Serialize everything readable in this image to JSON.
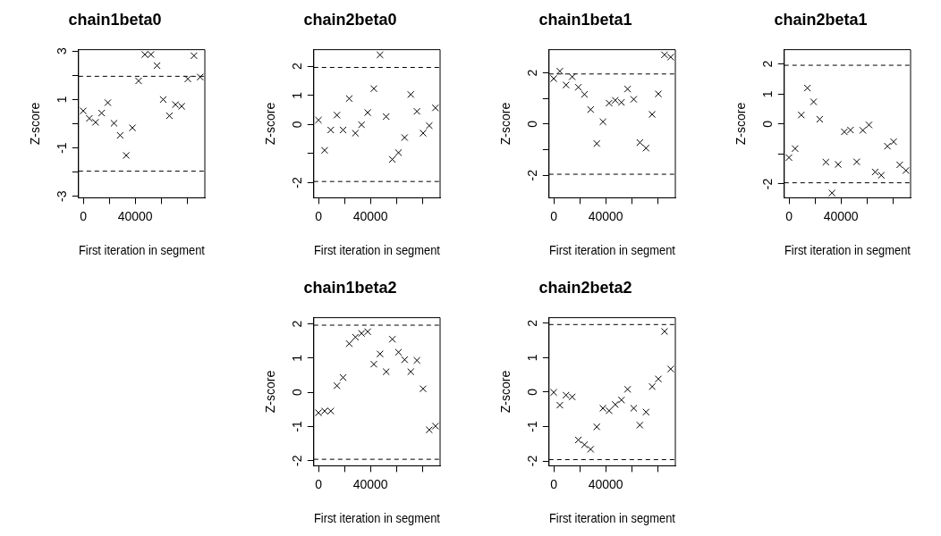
{
  "chart_data": [
    {
      "type": "scatter",
      "title": "chain1beta0",
      "xlabel": "First iteration in segment",
      "ylabel": "Z-score",
      "marker": "cross",
      "color": "#000000",
      "x": [
        0,
        4737,
        9474,
        14211,
        18947,
        23684,
        28421,
        33158,
        37895,
        42632,
        47368,
        52105,
        56842,
        61579,
        66316,
        71053,
        75789,
        80526,
        85263,
        90000
      ],
      "values": [
        0.53,
        0.22,
        0.06,
        0.44,
        0.87,
        0.02,
        -0.48,
        -1.31,
        -0.17,
        1.77,
        2.86,
        2.86,
        2.4,
        1.0,
        0.33,
        0.79,
        0.72,
        1.85,
        2.81,
        1.93
      ],
      "xlim": [
        -3600,
        93600
      ],
      "xticks": [
        {
          "value": 0,
          "label": "0"
        },
        {
          "value": 20000,
          "label": null
        },
        {
          "value": 40000,
          "label": "40000"
        },
        {
          "value": 60000,
          "label": null
        },
        {
          "value": 80000,
          "label": null
        }
      ],
      "ylim": [
        -3.06,
        3.06
      ],
      "yticks": [
        {
          "value": -3,
          "label": "-3"
        },
        {
          "value": -2,
          "label": null
        },
        {
          "value": -1,
          "label": "-1"
        },
        {
          "value": 0,
          "label": null
        },
        {
          "value": 1,
          "label": "1"
        },
        {
          "value": 2,
          "label": null
        },
        {
          "value": 3,
          "label": "3"
        }
      ],
      "ref_lines": [
        {
          "axis": "y",
          "value": 1.96,
          "line_style": "dashed"
        },
        {
          "axis": "y",
          "value": -1.96,
          "line_style": "dashed"
        }
      ]
    },
    {
      "type": "scatter",
      "title": "chain2beta0",
      "xlabel": "First iteration in segment",
      "ylabel": "Z-score",
      "marker": "cross",
      "color": "#000000",
      "x": [
        0,
        4737,
        9474,
        14211,
        18947,
        23684,
        28421,
        33158,
        37895,
        42632,
        47368,
        52105,
        56842,
        61579,
        66316,
        71053,
        75789,
        80526,
        85263,
        90000
      ],
      "values": [
        0.15,
        -0.89,
        -0.19,
        0.32,
        -0.19,
        0.89,
        -0.3,
        -0.01,
        0.41,
        1.23,
        2.39,
        0.27,
        -1.2,
        -0.97,
        -0.45,
        1.03,
        0.45,
        -0.3,
        -0.04,
        0.57
      ],
      "xlim": [
        -3600,
        93600
      ],
      "xticks": [
        {
          "value": 0,
          "label": "0"
        },
        {
          "value": 20000,
          "label": null
        },
        {
          "value": 40000,
          "label": "40000"
        },
        {
          "value": 60000,
          "label": null
        },
        {
          "value": 80000,
          "label": null
        }
      ],
      "ylim": [
        -2.52,
        2.57
      ],
      "yticks": [
        {
          "value": -2,
          "label": "-2"
        },
        {
          "value": -1,
          "label": null
        },
        {
          "value": 0,
          "label": "0"
        },
        {
          "value": 1,
          "label": "1"
        },
        {
          "value": 2,
          "label": "2"
        }
      ],
      "ref_lines": [
        {
          "axis": "y",
          "value": 1.96,
          "line_style": "dashed"
        },
        {
          "axis": "y",
          "value": -1.96,
          "line_style": "dashed"
        }
      ]
    },
    {
      "type": "scatter",
      "title": "chain1beta1",
      "xlabel": "First iteration in segment",
      "ylabel": "Z-score",
      "marker": "cross",
      "color": "#000000",
      "x": [
        0,
        4737,
        9474,
        14211,
        18947,
        23684,
        28421,
        33158,
        37895,
        42632,
        47368,
        52105,
        56842,
        61579,
        66316,
        71053,
        75789,
        80526,
        85263,
        90000
      ],
      "values": [
        1.78,
        2.07,
        1.53,
        1.85,
        1.44,
        1.16,
        0.57,
        -0.76,
        0.09,
        0.82,
        0.93,
        0.85,
        1.37,
        0.97,
        -0.72,
        -0.94,
        0.38,
        1.18,
        2.71,
        2.62
      ],
      "xlim": [
        -3600,
        93600
      ],
      "xticks": [
        {
          "value": 0,
          "label": "0"
        },
        {
          "value": 20000,
          "label": null
        },
        {
          "value": 40000,
          "label": "40000"
        },
        {
          "value": 60000,
          "label": null
        },
        {
          "value": 80000,
          "label": null
        }
      ],
      "ylim": [
        -2.88,
        2.91
      ],
      "yticks": [
        {
          "value": -2,
          "label": "-2"
        },
        {
          "value": -1,
          "label": null
        },
        {
          "value": 0,
          "label": "0"
        },
        {
          "value": 1,
          "label": null
        },
        {
          "value": 2,
          "label": "2"
        }
      ],
      "ref_lines": [
        {
          "axis": "y",
          "value": 1.96,
          "line_style": "dashed"
        },
        {
          "axis": "y",
          "value": -1.96,
          "line_style": "dashed"
        }
      ]
    },
    {
      "type": "scatter",
      "title": "chain2beta1",
      "xlabel": "First iteration in segment",
      "ylabel": "Z-score",
      "marker": "cross",
      "color": "#000000",
      "x": [
        0,
        4737,
        9474,
        14211,
        18947,
        23684,
        28421,
        33158,
        37895,
        42632,
        47368,
        52105,
        56842,
        61579,
        66316,
        71053,
        75789,
        80526,
        85263,
        90000
      ],
      "values": [
        -1.12,
        -0.82,
        0.3,
        1.2,
        0.74,
        0.16,
        -1.27,
        -2.3,
        -1.35,
        -0.26,
        -0.2,
        -1.26,
        -0.21,
        -0.03,
        -1.6,
        -1.71,
        -0.74,
        -0.59,
        -1.36,
        -1.55
      ],
      "xlim": [
        -3600,
        93600
      ],
      "xticks": [
        {
          "value": 0,
          "label": "0"
        },
        {
          "value": 20000,
          "label": null
        },
        {
          "value": 40000,
          "label": "40000"
        },
        {
          "value": 60000,
          "label": null
        },
        {
          "value": 80000,
          "label": null
        }
      ],
      "ylim": [
        -2.46,
        2.48
      ],
      "yticks": [
        {
          "value": -2,
          "label": "-2"
        },
        {
          "value": -1,
          "label": null
        },
        {
          "value": 0,
          "label": "0"
        },
        {
          "value": 1,
          "label": "1"
        },
        {
          "value": 2,
          "label": "2"
        }
      ],
      "ref_lines": [
        {
          "axis": "y",
          "value": 1.96,
          "line_style": "dashed"
        },
        {
          "axis": "y",
          "value": -1.96,
          "line_style": "dashed"
        }
      ]
    },
    {
      "type": "scatter",
      "title": "chain1beta2",
      "xlabel": "First iteration in segment",
      "ylabel": "Z-score",
      "marker": "cross",
      "color": "#000000",
      "x": [
        0,
        4737,
        9474,
        14211,
        18947,
        23684,
        28421,
        33158,
        37895,
        42632,
        47368,
        52105,
        56842,
        61579,
        66316,
        71053,
        75789,
        80526,
        85263,
        90000
      ],
      "values": [
        -0.6,
        -0.55,
        -0.55,
        0.19,
        0.43,
        1.42,
        1.61,
        1.72,
        1.77,
        0.82,
        1.12,
        0.6,
        1.55,
        1.17,
        0.95,
        0.6,
        0.93,
        0.1,
        -1.1,
        -0.99
      ],
      "xlim": [
        -3600,
        93600
      ],
      "xticks": [
        {
          "value": 0,
          "label": "0"
        },
        {
          "value": 20000,
          "label": null
        },
        {
          "value": 40000,
          "label": "40000"
        },
        {
          "value": 60000,
          "label": null
        },
        {
          "value": 80000,
          "label": null
        }
      ],
      "ylim": [
        -2.15,
        2.18
      ],
      "yticks": [
        {
          "value": -2,
          "label": "-2"
        },
        {
          "value": -1,
          "label": "-1"
        },
        {
          "value": 0,
          "label": "0"
        },
        {
          "value": 1,
          "label": "1"
        },
        {
          "value": 2,
          "label": "2"
        }
      ],
      "ref_lines": [
        {
          "axis": "y",
          "value": 1.96,
          "line_style": "dashed"
        },
        {
          "axis": "y",
          "value": -1.96,
          "line_style": "dashed"
        }
      ]
    },
    {
      "type": "scatter",
      "title": "chain2beta2",
      "xlabel": "First iteration in segment",
      "ylabel": "Z-score",
      "marker": "cross",
      "color": "#000000",
      "x": [
        0,
        4737,
        9474,
        14211,
        18947,
        23684,
        28421,
        33158,
        37895,
        42632,
        47368,
        52105,
        56842,
        61579,
        66316,
        71053,
        75789,
        80526,
        85263,
        90000
      ],
      "values": [
        -0.01,
        -0.38,
        -0.09,
        -0.14,
        -1.39,
        -1.53,
        -1.66,
        -1.01,
        -0.47,
        -0.54,
        -0.36,
        -0.23,
        0.08,
        -0.47,
        -0.96,
        -0.58,
        0.16,
        0.38,
        1.76,
        0.67
      ],
      "xlim": [
        -3600,
        93600
      ],
      "xticks": [
        {
          "value": 0,
          "label": "0"
        },
        {
          "value": 20000,
          "label": null
        },
        {
          "value": 40000,
          "label": "40000"
        },
        {
          "value": 60000,
          "label": null
        },
        {
          "value": 80000,
          "label": null
        }
      ],
      "ylim": [
        -2.14,
        2.16
      ],
      "yticks": [
        {
          "value": -2,
          "label": "-2"
        },
        {
          "value": -1,
          "label": "-1"
        },
        {
          "value": 0,
          "label": "0"
        },
        {
          "value": 1,
          "label": "1"
        },
        {
          "value": 2,
          "label": "2"
        }
      ],
      "ref_lines": [
        {
          "axis": "y",
          "value": 1.96,
          "line_style": "dashed"
        },
        {
          "axis": "y",
          "value": -1.96,
          "line_style": "dashed"
        }
      ]
    }
  ]
}
